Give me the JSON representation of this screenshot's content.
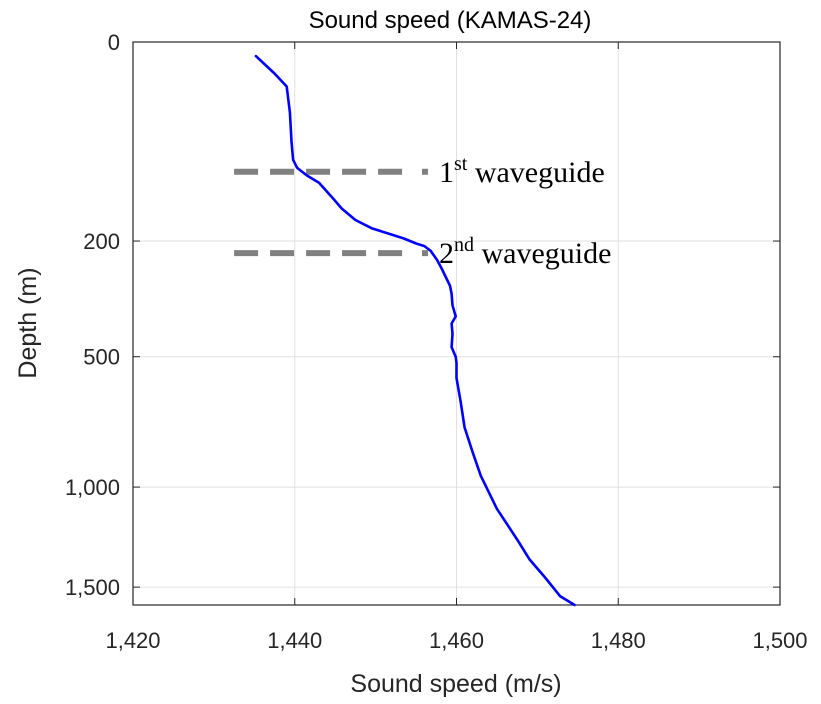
{
  "chart_data": {
    "type": "line",
    "title": "Sound speed (KAMAS-24)",
    "xlabel": "Sound speed (m/s)",
    "ylabel": "Depth (m)",
    "xlim": [
      1420,
      1500
    ],
    "ylim": [
      0,
      1600
    ],
    "y_reversed": true,
    "y_scale": "sqrt",
    "grid": true,
    "xticks": [
      1420,
      1440,
      1460,
      1480,
      1500
    ],
    "xtick_labels": [
      "1,420",
      "1,440",
      "1,460",
      "1,480",
      "1,500"
    ],
    "yticks": [
      0,
      200,
      500,
      1000,
      1500
    ],
    "ytick_labels": [
      "0",
      "200",
      "500",
      "1,000",
      "1,500"
    ],
    "series": [
      {
        "name": "KAMAS-24 sound speed profile",
        "color": "#0000ff",
        "x": [
          1435.2,
          1437.5,
          1439.0,
          1439.4,
          1439.6,
          1439.8,
          1440.3,
          1441.5,
          1443.0,
          1444.5,
          1445.8,
          1447.5,
          1449.5,
          1451.5,
          1453.5,
          1455.0,
          1456.0,
          1456.8,
          1457.6,
          1458.2,
          1458.7,
          1459.2,
          1459.4,
          1459.5,
          1459.9,
          1459.4,
          1459.5,
          1459.4,
          1459.9,
          1460.0,
          1460.0,
          1460.5,
          1461.0,
          1462.0,
          1463.0,
          1465.0,
          1467.5,
          1469.0,
          1471.0,
          1472.8,
          1474.6
        ],
        "y": [
          1,
          5,
          10,
          25,
          50,
          70,
          80,
          90,
          100,
          120,
          140,
          160,
          175,
          185,
          195,
          205,
          210,
          220,
          240,
          260,
          280,
          300,
          320,
          350,
          380,
          400,
          430,
          470,
          500,
          520,
          570,
          650,
          750,
          850,
          950,
          1100,
          1250,
          1350,
          1450,
          1550,
          1620
        ]
      }
    ],
    "annotations": [
      {
        "type": "dashed-hline",
        "depth": 85,
        "x_range": [
          1432.5,
          1454
        ],
        "color": "#808080",
        "label_main": "1",
        "label_sup": "st",
        "label_rest": " waveguide"
      },
      {
        "type": "dashed-hline",
        "depth": 225,
        "x_range": [
          1432.5,
          1454
        ],
        "color": "#808080",
        "label_main": "2",
        "label_sup": "nd",
        "label_rest": " waveguide"
      }
    ]
  }
}
